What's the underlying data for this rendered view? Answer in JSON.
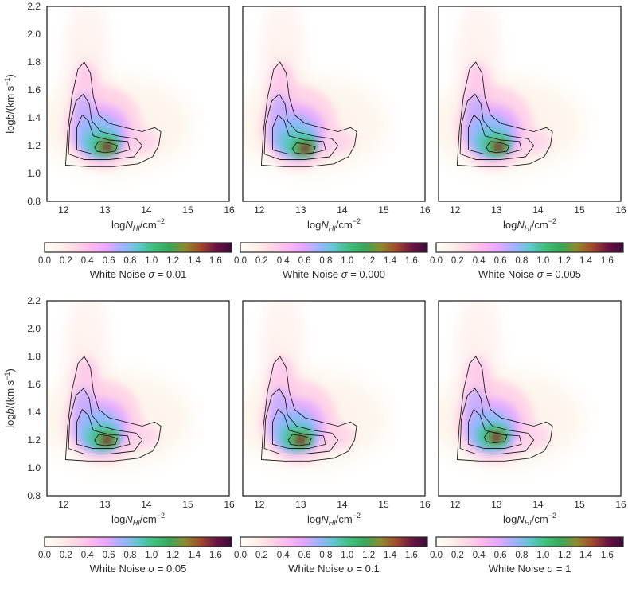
{
  "figure": {
    "colormap": [
      "#fffdf8",
      "#fff1e8",
      "#ffd6e6",
      "#ffb8ef",
      "#e6a6ff",
      "#9fb4ff",
      "#63c7cf",
      "#3ebf7a",
      "#3aa65a",
      "#8f8a2e",
      "#a24a2a",
      "#6b1444",
      "#3b0b3a"
    ],
    "axis_text_color": "#2b2b2b"
  },
  "chart_data": [
    {
      "type": "heatmap",
      "xlabel_parts": [
        "log",
        "N",
        "HI",
        "/cm",
        "−2"
      ],
      "ylabel_parts": [
        "log",
        "b",
        "/(km s",
        "−1",
        ")"
      ],
      "x_ticks": [
        "12",
        "13",
        "14",
        "15",
        "16"
      ],
      "y_ticks": [
        "0.8",
        "1.0",
        "1.2",
        "1.4",
        "1.6",
        "1.8",
        "2.0",
        "2.2"
      ],
      "xlim": [
        11.6,
        16.0
      ],
      "ylim": [
        0.8,
        2.2
      ],
      "colorbar_ticks": [
        "0.0",
        "0.2",
        "0.4",
        "0.6",
        "0.8",
        "1.0",
        "1.2",
        "1.4",
        "1.6"
      ],
      "colorbar_range": [
        0.0,
        1.75
      ],
      "colorbar_label_prefix": "White Noise ",
      "sigma_symbol": "σ",
      "sigma_value": "= 0.01",
      "peak": {
        "x": 13.05,
        "y": 1.19
      },
      "contour_levels": [
        0.15,
        0.45,
        0.85,
        1.3
      ],
      "show_y_axis": true
    },
    {
      "type": "heatmap",
      "xlabel_parts": [
        "log",
        "N",
        "HI",
        "/cm",
        "−2"
      ],
      "ylabel_parts": [
        "log",
        "b",
        "/(km s",
        "−1",
        ")"
      ],
      "x_ticks": [
        "12",
        "13",
        "14",
        "15",
        "16"
      ],
      "y_ticks": [
        "0.8",
        "1.0",
        "1.2",
        "1.4",
        "1.6",
        "1.8",
        "2.0",
        "2.2"
      ],
      "xlim": [
        11.6,
        16.0
      ],
      "ylim": [
        0.8,
        2.2
      ],
      "colorbar_ticks": [
        "0.0",
        "0.2",
        "0.4",
        "0.6",
        "0.8",
        "1.0",
        "1.2",
        "1.4",
        "1.6"
      ],
      "colorbar_range": [
        0.0,
        1.75
      ],
      "colorbar_label_prefix": "White Noise ",
      "sigma_symbol": "σ",
      "sigma_value": "= 0.000",
      "peak": {
        "x": 13.1,
        "y": 1.18
      },
      "contour_levels": [
        0.15,
        0.45,
        0.85,
        1.3
      ],
      "show_y_axis": false
    },
    {
      "type": "heatmap",
      "xlabel_parts": [
        "log",
        "N",
        "HI",
        "/cm",
        "−2"
      ],
      "ylabel_parts": [
        "log",
        "b",
        "/(km s",
        "−1",
        ")"
      ],
      "x_ticks": [
        "12",
        "13",
        "14",
        "15",
        "16"
      ],
      "y_ticks": [
        "0.8",
        "1.0",
        "1.2",
        "1.4",
        "1.6",
        "1.8",
        "2.0",
        "2.2"
      ],
      "xlim": [
        11.6,
        16.0
      ],
      "ylim": [
        0.8,
        2.2
      ],
      "colorbar_ticks": [
        "0.0",
        "0.2",
        "0.4",
        "0.6",
        "0.8",
        "1.0",
        "1.2",
        "1.4",
        "1.6"
      ],
      "colorbar_range": [
        0.0,
        1.75
      ],
      "colorbar_label_prefix": "White Noise ",
      "sigma_symbol": "σ",
      "sigma_value": "= 0.005",
      "peak": {
        "x": 13.05,
        "y": 1.19
      },
      "contour_levels": [
        0.15,
        0.45,
        0.85,
        1.3
      ],
      "show_y_axis": false
    },
    {
      "type": "heatmap",
      "xlabel_parts": [
        "log",
        "N",
        "HI",
        "/cm",
        "−2"
      ],
      "ylabel_parts": [
        "log",
        "b",
        "/(km s",
        "−1",
        ")"
      ],
      "x_ticks": [
        "12",
        "13",
        "14",
        "15",
        "16"
      ],
      "y_ticks": [
        "0.8",
        "1.0",
        "1.2",
        "1.4",
        "1.6",
        "1.8",
        "2.0",
        "2.2"
      ],
      "xlim": [
        11.6,
        16.0
      ],
      "ylim": [
        0.8,
        2.2
      ],
      "colorbar_ticks": [
        "0.0",
        "0.2",
        "0.4",
        "0.6",
        "0.8",
        "1.0",
        "1.2",
        "1.4",
        "1.6"
      ],
      "colorbar_range": [
        0.0,
        1.75
      ],
      "colorbar_label_prefix": "White Noise ",
      "sigma_symbol": "σ",
      "sigma_value": "= 0.05",
      "peak": {
        "x": 13.05,
        "y": 1.2
      },
      "contour_levels": [
        0.15,
        0.45,
        0.85,
        1.3
      ],
      "show_y_axis": true
    },
    {
      "type": "heatmap",
      "xlabel_parts": [
        "log",
        "N",
        "HI",
        "/cm",
        "−2"
      ],
      "ylabel_parts": [
        "log",
        "b",
        "/(km s",
        "−1",
        ")"
      ],
      "x_ticks": [
        "12",
        "13",
        "14",
        "15",
        "16"
      ],
      "y_ticks": [
        "0.8",
        "1.0",
        "1.2",
        "1.4",
        "1.6",
        "1.8",
        "2.0",
        "2.2"
      ],
      "xlim": [
        11.6,
        16.0
      ],
      "ylim": [
        0.8,
        2.2
      ],
      "colorbar_ticks": [
        "0.0",
        "0.2",
        "0.4",
        "0.6",
        "0.8",
        "1.0",
        "1.2",
        "1.4",
        "1.6"
      ],
      "colorbar_range": [
        0.0,
        1.75
      ],
      "colorbar_label_prefix": "White Noise ",
      "sigma_symbol": "σ",
      "sigma_value": "= 0.1",
      "peak": {
        "x": 13.0,
        "y": 1.2
      },
      "contour_levels": [
        0.15,
        0.45,
        0.85,
        1.3
      ],
      "show_y_axis": false
    },
    {
      "type": "heatmap",
      "xlabel_parts": [
        "log",
        "N",
        "HI",
        "/cm",
        "−2"
      ],
      "ylabel_parts": [
        "log",
        "b",
        "/(km s",
        "−1",
        ")"
      ],
      "x_ticks": [
        "12",
        "13",
        "14",
        "15",
        "16"
      ],
      "y_ticks": [
        "0.8",
        "1.0",
        "1.2",
        "1.4",
        "1.6",
        "1.8",
        "2.0",
        "2.2"
      ],
      "xlim": [
        11.6,
        16.0
      ],
      "ylim": [
        0.8,
        2.2
      ],
      "colorbar_ticks": [
        "0.0",
        "0.2",
        "0.4",
        "0.6",
        "0.8",
        "1.0",
        "1.2",
        "1.4",
        "1.6"
      ],
      "colorbar_range": [
        0.0,
        1.75
      ],
      "colorbar_label_prefix": "White Noise ",
      "sigma_symbol": "σ",
      "sigma_value": "= 1",
      "peak": {
        "x": 13.0,
        "y": 1.22
      },
      "contour_levels": [
        0.15,
        0.45,
        0.85,
        1.3
      ],
      "show_y_axis": false
    }
  ]
}
